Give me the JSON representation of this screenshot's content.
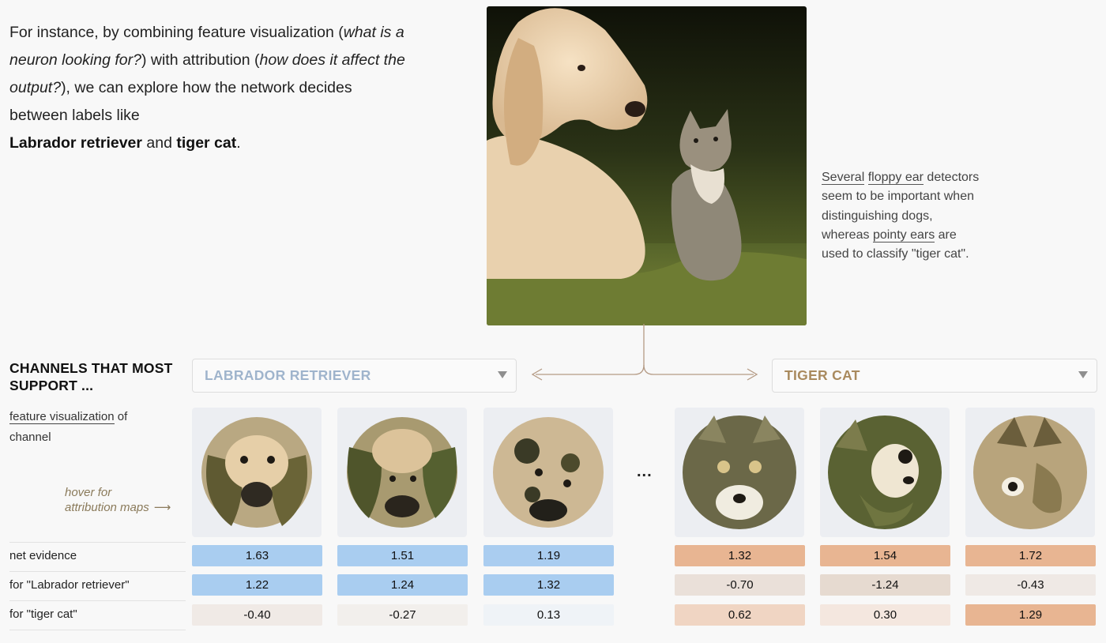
{
  "intro": {
    "p1": "For instance, by combining feature visualization (",
    "em1": "what is a neuron looking for?",
    "p2": ") with attribution (",
    "em2": "how does it affect the output?",
    "p3": "), we can explore how the network decides between labels like ",
    "label1": "Labrador retriever",
    "and": " and ",
    "label2": "tiger cat",
    "end": "."
  },
  "note": {
    "l1": "Several",
    "l2": "floppy ear",
    "l3": "detectors seem to be important when distinguishing dogs, whereas",
    "l4": "pointy ears",
    "l5": "are used to classify \"tiger cat\"."
  },
  "section": {
    "heading_line1": "CHANNELS THAT MOST",
    "heading_line2": "SUPPORT ...",
    "fv_link": "feature visualization",
    "fv_rest": "of",
    "fv_line2": "channel",
    "hover_line1": "hover for",
    "hover_line2": "attribution maps",
    "hover_arrow": "⟶",
    "ellipsis": "..."
  },
  "selects": {
    "left": "LABRADOR RETRIEVER",
    "right": "TIGER CAT"
  },
  "rows": {
    "net": "net evidence",
    "lab": "for \"Labrador retriever\"",
    "cat": "for \"tiger cat\""
  },
  "colors": {
    "blue": "#a9cdf0",
    "orange": "#e8b592"
  },
  "channels": [
    {
      "net": "1.63",
      "lab": "1.22",
      "cat": "-0.40"
    },
    {
      "net": "1.51",
      "lab": "1.24",
      "cat": "-0.27"
    },
    {
      "net": "1.19",
      "lab": "1.32",
      "cat": "0.13"
    },
    {
      "net": "1.32",
      "lab": "-0.70",
      "cat": "0.62"
    },
    {
      "net": "1.54",
      "lab": "-1.24",
      "cat": "0.30"
    },
    {
      "net": "1.72",
      "lab": "-0.43",
      "cat": "1.29"
    }
  ]
}
